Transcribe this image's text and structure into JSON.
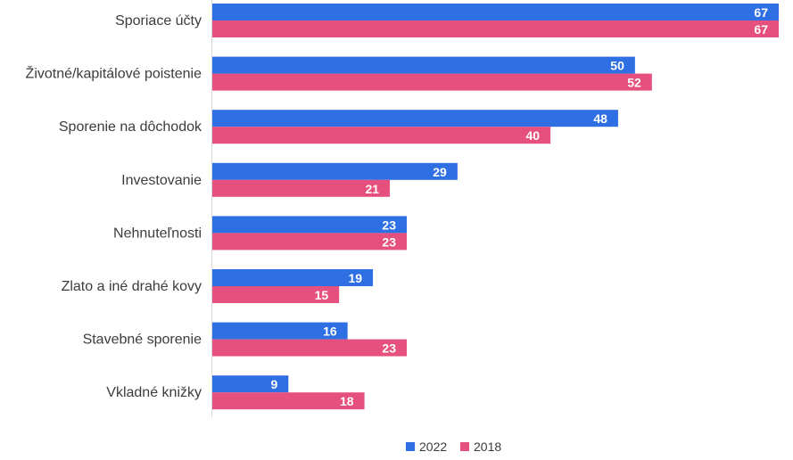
{
  "chart_data": {
    "type": "bar",
    "orientation": "horizontal",
    "categories": [
      "Sporiace účty",
      "Životné/kapitálové poistenie",
      "Sporenie na dôchodok",
      "Investovanie",
      "Nehnuteľnosti",
      "Zlato a iné drahé kovy",
      "Stavebné sporenie",
      "Vkladné knižky"
    ],
    "series": [
      {
        "name": "2022",
        "color": "#2f6fe4",
        "values": [
          67,
          50,
          48,
          29,
          23,
          19,
          16,
          9
        ]
      },
      {
        "name": "2018",
        "color": "#e5507e",
        "values": [
          67,
          52,
          40,
          21,
          23,
          15,
          23,
          18
        ]
      }
    ],
    "xlim": [
      0,
      67
    ],
    "grid": false,
    "legend": "bottom-center",
    "data_labels": true
  }
}
